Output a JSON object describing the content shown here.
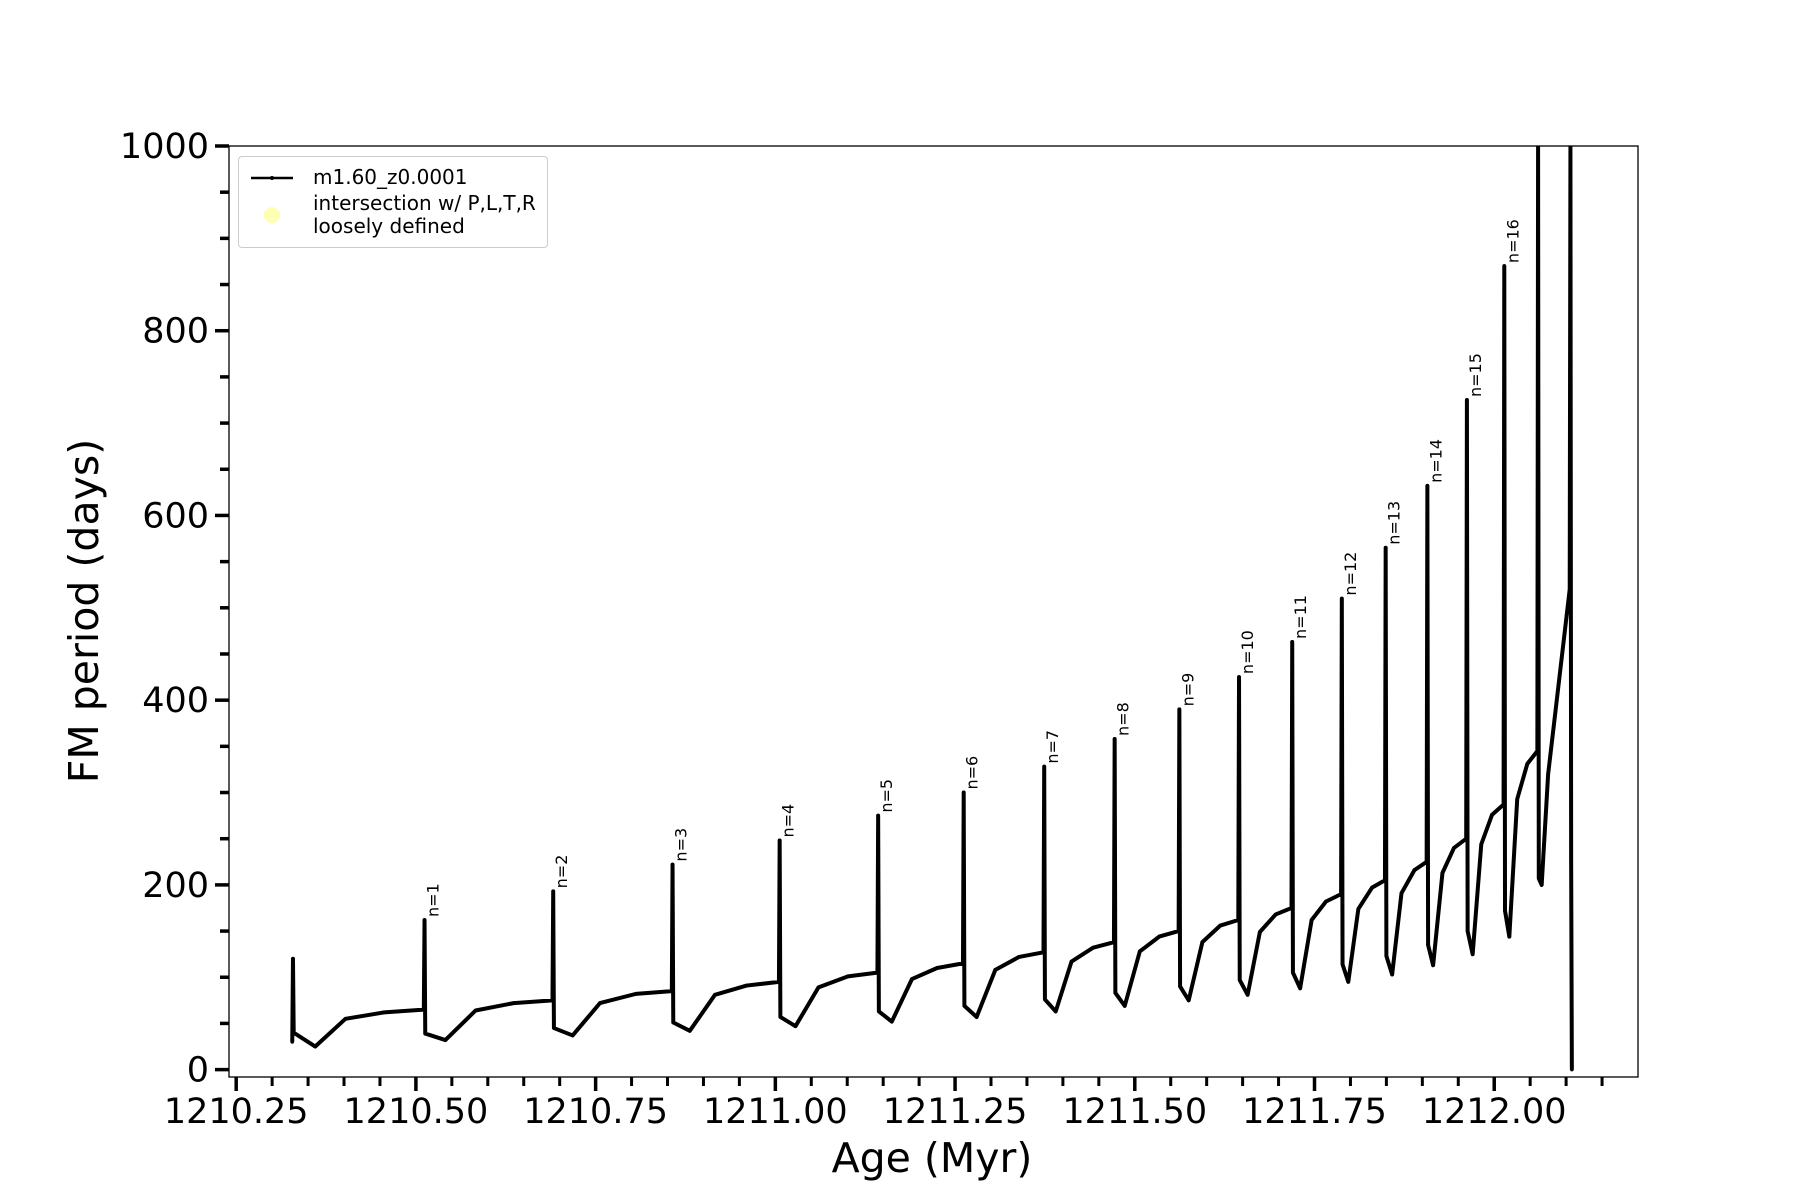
{
  "chart_data": {
    "type": "line",
    "x_label": "Age (Myr)",
    "y_label": "FM period (days)",
    "xlim": [
      1210.24,
      1212.2
    ],
    "ylim": [
      -8,
      1000
    ],
    "xticks": [
      {
        "value": 1210.25,
        "label": "1210.25"
      },
      {
        "value": 1210.5,
        "label": "1210.50"
      },
      {
        "value": 1210.75,
        "label": "1210.75"
      },
      {
        "value": 1211.0,
        "label": "1211.00"
      },
      {
        "value": 1211.25,
        "label": "1211.25"
      },
      {
        "value": 1211.5,
        "label": "1211.50"
      },
      {
        "value": 1211.75,
        "label": "1211.75"
      },
      {
        "value": 1212.0,
        "label": "1212.00"
      }
    ],
    "yticks": [
      0,
      200,
      400,
      600,
      800,
      1000
    ],
    "xminorticks": [
      1210.3,
      1210.35,
      1210.4,
      1210.45,
      1210.55,
      1210.6,
      1210.65,
      1210.7,
      1210.8,
      1210.85,
      1210.9,
      1210.95,
      1211.05,
      1211.1,
      1211.15,
      1211.2,
      1211.3,
      1211.35,
      1211.4,
      1211.45,
      1211.55,
      1211.6,
      1211.65,
      1211.7,
      1211.8,
      1211.85,
      1211.9,
      1211.95,
      1212.05,
      1212.1,
      1212.15
    ],
    "yminorticks": [
      50,
      100,
      150,
      250,
      300,
      350,
      450,
      500,
      550,
      650,
      700,
      750,
      850,
      900,
      950
    ],
    "legend": "upper left",
    "series": [
      {
        "name": "m1.60_z0.0001",
        "color": "#000000",
        "x": [
          1210.328,
          1210.329,
          1210.33,
          1210.36,
          1210.402,
          1210.456,
          1210.511,
          1210.512,
          1210.513,
          1210.541,
          1210.583,
          1210.636,
          1210.69,
          1210.691,
          1210.692,
          1210.718,
          1210.756,
          1210.806,
          1210.856,
          1210.857,
          1210.858,
          1210.881,
          1210.916,
          1210.96,
          1211.005,
          1211.006,
          1211.007,
          1211.028,
          1211.06,
          1211.101,
          1211.142,
          1211.143,
          1211.144,
          1211.162,
          1211.19,
          1211.225,
          1211.261,
          1211.262,
          1211.263,
          1211.28,
          1211.306,
          1211.339,
          1211.373,
          1211.374,
          1211.375,
          1211.39,
          1211.412,
          1211.442,
          1211.471,
          1211.472,
          1211.473,
          1211.486,
          1211.507,
          1211.534,
          1211.561,
          1211.562,
          1211.563,
          1211.575,
          1211.594,
          1211.619,
          1211.644,
          1211.645,
          1211.646,
          1211.657,
          1211.674,
          1211.696,
          1211.718,
          1211.719,
          1211.72,
          1211.73,
          1211.746,
          1211.766,
          1211.787,
          1211.788,
          1211.789,
          1211.797,
          1211.811,
          1211.83,
          1211.848,
          1211.849,
          1211.85,
          1211.858,
          1211.871,
          1211.889,
          1211.906,
          1211.907,
          1211.908,
          1211.915,
          1211.928,
          1211.944,
          1211.961,
          1211.962,
          1211.963,
          1211.97,
          1211.982,
          1211.997,
          1212.013,
          1212.014,
          1212.015,
          1212.021,
          1212.032,
          1212.046,
          1212.06,
          1212.061,
          1212.062,
          1212.066,
          1212.075,
          1212.09,
          1212.105,
          1212.106,
          1212.107,
          1212.108
        ],
        "values": [
          30,
          120,
          40,
          25,
          55,
          62,
          65,
          162,
          39,
          32,
          64,
          72,
          75,
          193,
          45,
          37,
          72,
          82,
          85,
          222,
          51,
          42,
          81,
          91,
          95,
          248,
          57,
          47,
          89,
          101,
          105,
          275,
          63,
          52,
          98,
          110,
          115,
          300,
          69,
          57,
          108,
          122,
          127,
          328,
          76,
          63,
          117,
          132,
          138,
          358,
          83,
          69,
          128,
          144,
          150,
          390,
          90,
          75,
          138,
          156,
          162,
          425,
          97,
          81,
          149,
          168,
          175,
          463,
          105,
          88,
          162,
          182,
          190,
          510,
          114,
          95,
          174,
          197,
          205,
          565,
          123,
          103,
          191,
          216,
          225,
          632,
          135,
          113,
          213,
          240,
          250,
          725,
          150,
          125,
          244,
          276,
          287,
          870,
          172,
          144,
          293,
          331,
          345,
          1000,
          207,
          200,
          320,
          420,
          520,
          1000,
          230,
          0
        ]
      },
      {
        "name": "intersection w/ P,L,T,R\nloosely defined",
        "color": "#ffffb3",
        "x": [],
        "values": []
      }
    ],
    "annotations": [
      {
        "text": "n=1",
        "x": 1210.512,
        "y": 162
      },
      {
        "text": "n=2",
        "x": 1210.691,
        "y": 193
      },
      {
        "text": "n=3",
        "x": 1210.857,
        "y": 222
      },
      {
        "text": "n=4",
        "x": 1211.006,
        "y": 248
      },
      {
        "text": "n=5",
        "x": 1211.143,
        "y": 275
      },
      {
        "text": "n=6",
        "x": 1211.262,
        "y": 300
      },
      {
        "text": "n=7",
        "x": 1211.374,
        "y": 328
      },
      {
        "text": "n=8",
        "x": 1211.472,
        "y": 358
      },
      {
        "text": "n=9",
        "x": 1211.562,
        "y": 390
      },
      {
        "text": "n=10",
        "x": 1211.645,
        "y": 425
      },
      {
        "text": "n=11",
        "x": 1211.719,
        "y": 463
      },
      {
        "text": "n=12",
        "x": 1211.788,
        "y": 510
      },
      {
        "text": "n=13",
        "x": 1211.849,
        "y": 565
      },
      {
        "text": "n=14",
        "x": 1211.907,
        "y": 632
      },
      {
        "text": "n=15",
        "x": 1211.962,
        "y": 725
      },
      {
        "text": "n=16",
        "x": 1212.014,
        "y": 870
      }
    ]
  }
}
